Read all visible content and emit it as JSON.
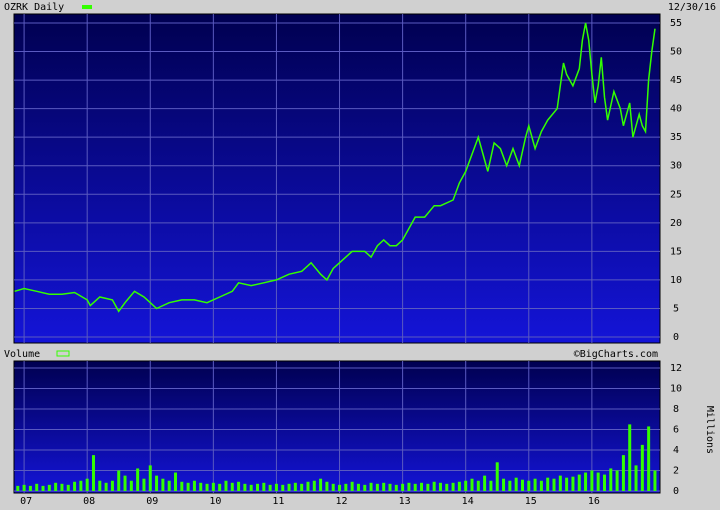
{
  "chart_data": [
    {
      "type": "line",
      "date": "12/30/16",
      "x": [
        2006.85,
        2007.0,
        2007.2,
        2007.4,
        2007.6,
        2007.8,
        2008.0,
        2008.05,
        2008.2,
        2008.4,
        2008.5,
        2008.6,
        2008.75,
        2008.9,
        2009.0,
        2009.1,
        2009.3,
        2009.5,
        2009.7,
        2009.9,
        2010.1,
        2010.3,
        2010.4,
        2010.6,
        2010.8,
        2011.0,
        2011.2,
        2011.4,
        2011.55,
        2011.7,
        2011.8,
        2011.9,
        2012.0,
        2012.2,
        2012.4,
        2012.5,
        2012.6,
        2012.7,
        2012.8,
        2012.9,
        2013.0,
        2013.1,
        2013.2,
        2013.35,
        2013.5,
        2013.6,
        2013.8,
        2013.9,
        2014.0,
        2014.1,
        2014.2,
        2014.3,
        2014.35,
        2014.45,
        2014.55,
        2014.65,
        2014.75,
        2014.85,
        2014.95,
        2015.0,
        2015.1,
        2015.2,
        2015.3,
        2015.45,
        2015.5,
        2015.55,
        2015.6,
        2015.7,
        2015.8,
        2015.85,
        2015.9,
        2015.95,
        2016.0,
        2016.05,
        2016.1,
        2016.15,
        2016.2,
        2016.25,
        2016.35,
        2016.45,
        2016.5,
        2016.6,
        2016.65,
        2016.75,
        2016.8,
        2016.85,
        2016.9,
        2016.95,
        2017.0
      ],
      "series": [
        {
          "name": "OZRK Daily",
          "color": "#33ff00",
          "values": [
            8,
            8.5,
            8,
            7.5,
            7.5,
            7.8,
            6.5,
            5.5,
            7,
            6.5,
            4.5,
            6,
            8,
            7,
            6,
            5,
            6,
            6.5,
            6.5,
            6,
            7,
            8,
            9.5,
            9,
            9.5,
            10,
            11,
            11.5,
            13,
            11,
            10,
            12,
            13,
            15,
            15,
            14,
            16,
            17,
            16,
            16,
            17,
            19,
            21,
            21,
            23,
            23,
            24,
            27,
            29,
            32,
            35,
            31,
            29,
            34,
            33,
            30,
            33,
            30,
            35,
            37,
            33,
            36,
            38,
            40,
            44,
            48,
            46,
            44,
            47,
            52,
            55,
            52,
            46,
            41,
            44,
            49,
            42,
            38,
            43,
            40,
            37,
            41,
            35,
            39,
            37,
            36,
            45,
            50,
            54
          ]
        }
      ],
      "xlim": [
        2006.84,
        2017.08
      ],
      "xticks": [
        2007,
        2008,
        2009,
        2010,
        2011,
        2012,
        2013,
        2014,
        2015,
        2016
      ],
      "ylim": [
        0,
        55
      ],
      "yticks": [
        0,
        5,
        10,
        15,
        20,
        25,
        30,
        35,
        40,
        45,
        50,
        55
      ],
      "grid": true
    },
    {
      "type": "bar",
      "source": "©BigCharts.com",
      "y_label": "Millions",
      "x": [
        2006.9,
        2007.0,
        2007.1,
        2007.2,
        2007.3,
        2007.4,
        2007.5,
        2007.6,
        2007.7,
        2007.8,
        2007.9,
        2008.0,
        2008.1,
        2008.2,
        2008.3,
        2008.4,
        2008.5,
        2008.6,
        2008.7,
        2008.8,
        2008.9,
        2009.0,
        2009.1,
        2009.2,
        2009.3,
        2009.4,
        2009.5,
        2009.6,
        2009.7,
        2009.8,
        2009.9,
        2010.0,
        2010.1,
        2010.2,
        2010.3,
        2010.4,
        2010.5,
        2010.6,
        2010.7,
        2010.8,
        2010.9,
        2011.0,
        2011.1,
        2011.2,
        2011.3,
        2011.4,
        2011.5,
        2011.6,
        2011.7,
        2011.8,
        2011.9,
        2012.0,
        2012.1,
        2012.2,
        2012.3,
        2012.4,
        2012.5,
        2012.6,
        2012.7,
        2012.8,
        2012.9,
        2013.0,
        2013.1,
        2013.2,
        2013.3,
        2013.4,
        2013.5,
        2013.6,
        2013.7,
        2013.8,
        2013.9,
        2014.0,
        2014.1,
        2014.2,
        2014.3,
        2014.4,
        2014.5,
        2014.6,
        2014.7,
        2014.8,
        2014.9,
        2015.0,
        2015.1,
        2015.2,
        2015.3,
        2015.4,
        2015.5,
        2015.6,
        2015.7,
        2015.8,
        2015.9,
        2016.0,
        2016.1,
        2016.2,
        2016.3,
        2016.4,
        2016.5,
        2016.6,
        2016.7,
        2016.8,
        2016.9,
        2017.0
      ],
      "series": [
        {
          "name": "Volume",
          "color": "#33ff00",
          "values": [
            0.5,
            0.6,
            0.5,
            0.7,
            0.5,
            0.6,
            0.8,
            0.7,
            0.6,
            0.9,
            1.0,
            1.2,
            3.5,
            1.0,
            0.8,
            1.0,
            2.0,
            1.5,
            1.0,
            2.2,
            1.2,
            2.5,
            1.5,
            1.2,
            1.0,
            1.8,
            0.9,
            0.8,
            1.0,
            0.8,
            0.7,
            0.8,
            0.7,
            1.0,
            0.8,
            0.9,
            0.7,
            0.6,
            0.7,
            0.8,
            0.6,
            0.7,
            0.6,
            0.7,
            0.8,
            0.7,
            0.9,
            1.0,
            1.2,
            0.9,
            0.7,
            0.6,
            0.7,
            0.9,
            0.7,
            0.6,
            0.8,
            0.7,
            0.8,
            0.7,
            0.6,
            0.7,
            0.8,
            0.7,
            0.8,
            0.7,
            0.9,
            0.8,
            0.7,
            0.8,
            0.9,
            1.0,
            1.2,
            1.0,
            1.5,
            1.0,
            2.8,
            1.2,
            1.0,
            1.3,
            1.1,
            1.0,
            1.2,
            1.0,
            1.3,
            1.2,
            1.5,
            1.3,
            1.4,
            1.6,
            1.8,
            2.0,
            1.8,
            1.6,
            2.2,
            2.0,
            3.5,
            6.5,
            2.5,
            4.5,
            6.3,
            2.0
          ]
        }
      ],
      "xlim": [
        2006.84,
        2017.08
      ],
      "xticks": [
        {
          "value": 2007,
          "label": "07"
        },
        {
          "value": 2008,
          "label": "08"
        },
        {
          "value": 2009,
          "label": "09"
        },
        {
          "value": 2010,
          "label": "10"
        },
        {
          "value": 2011,
          "label": "11"
        },
        {
          "value": 2012,
          "label": "12"
        },
        {
          "value": 2013,
          "label": "13"
        },
        {
          "value": 2014,
          "label": "14"
        },
        {
          "value": 2015,
          "label": "15"
        },
        {
          "value": 2016,
          "label": "16"
        }
      ],
      "ylim": [
        0,
        12
      ],
      "yticks": [
        0,
        2,
        4,
        6,
        8,
        10,
        12
      ],
      "grid": true
    }
  ]
}
